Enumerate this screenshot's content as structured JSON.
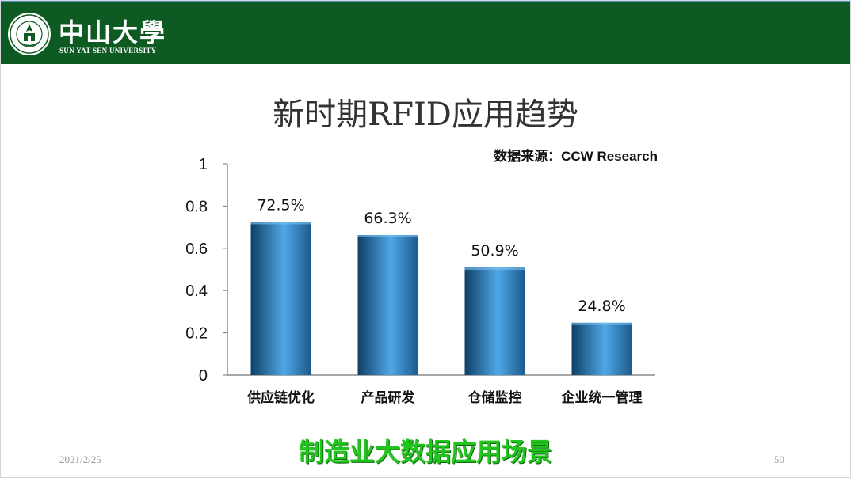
{
  "header": {
    "logo_cn": "中山大學",
    "logo_en": "SUN YAT-SEN UNIVERSITY",
    "seal_icon": "university-seal-icon",
    "colors": {
      "bar": "#0d5a22",
      "accent_line": "#5a8fb8"
    }
  },
  "slide": {
    "title": "新时期RFID应用趋势",
    "source": "数据来源：CCW Research",
    "caption": "制造业大数据应用场景",
    "date": "2021/2/25",
    "page_number": "50"
  },
  "chart_data": {
    "type": "bar",
    "categories": [
      "供应链优化",
      "产品研发",
      "仓储监控",
      "企业统一管理"
    ],
    "values": [
      0.725,
      0.663,
      0.509,
      0.248
    ],
    "data_labels": [
      "72.5%",
      "66.3%",
      "50.9%",
      "24.8%"
    ],
    "yticks": [
      "0",
      "0.2",
      "0.4",
      "0.6",
      "0.8",
      "1"
    ],
    "ylim": [
      0,
      1
    ],
    "title": "",
    "xlabel": "",
    "ylabel": "",
    "grid": false,
    "legend": "none",
    "colors": {
      "bar_dark": "#0f3f66",
      "bar_light": "#4fa8e6",
      "axis": "#8a8a8a"
    }
  }
}
